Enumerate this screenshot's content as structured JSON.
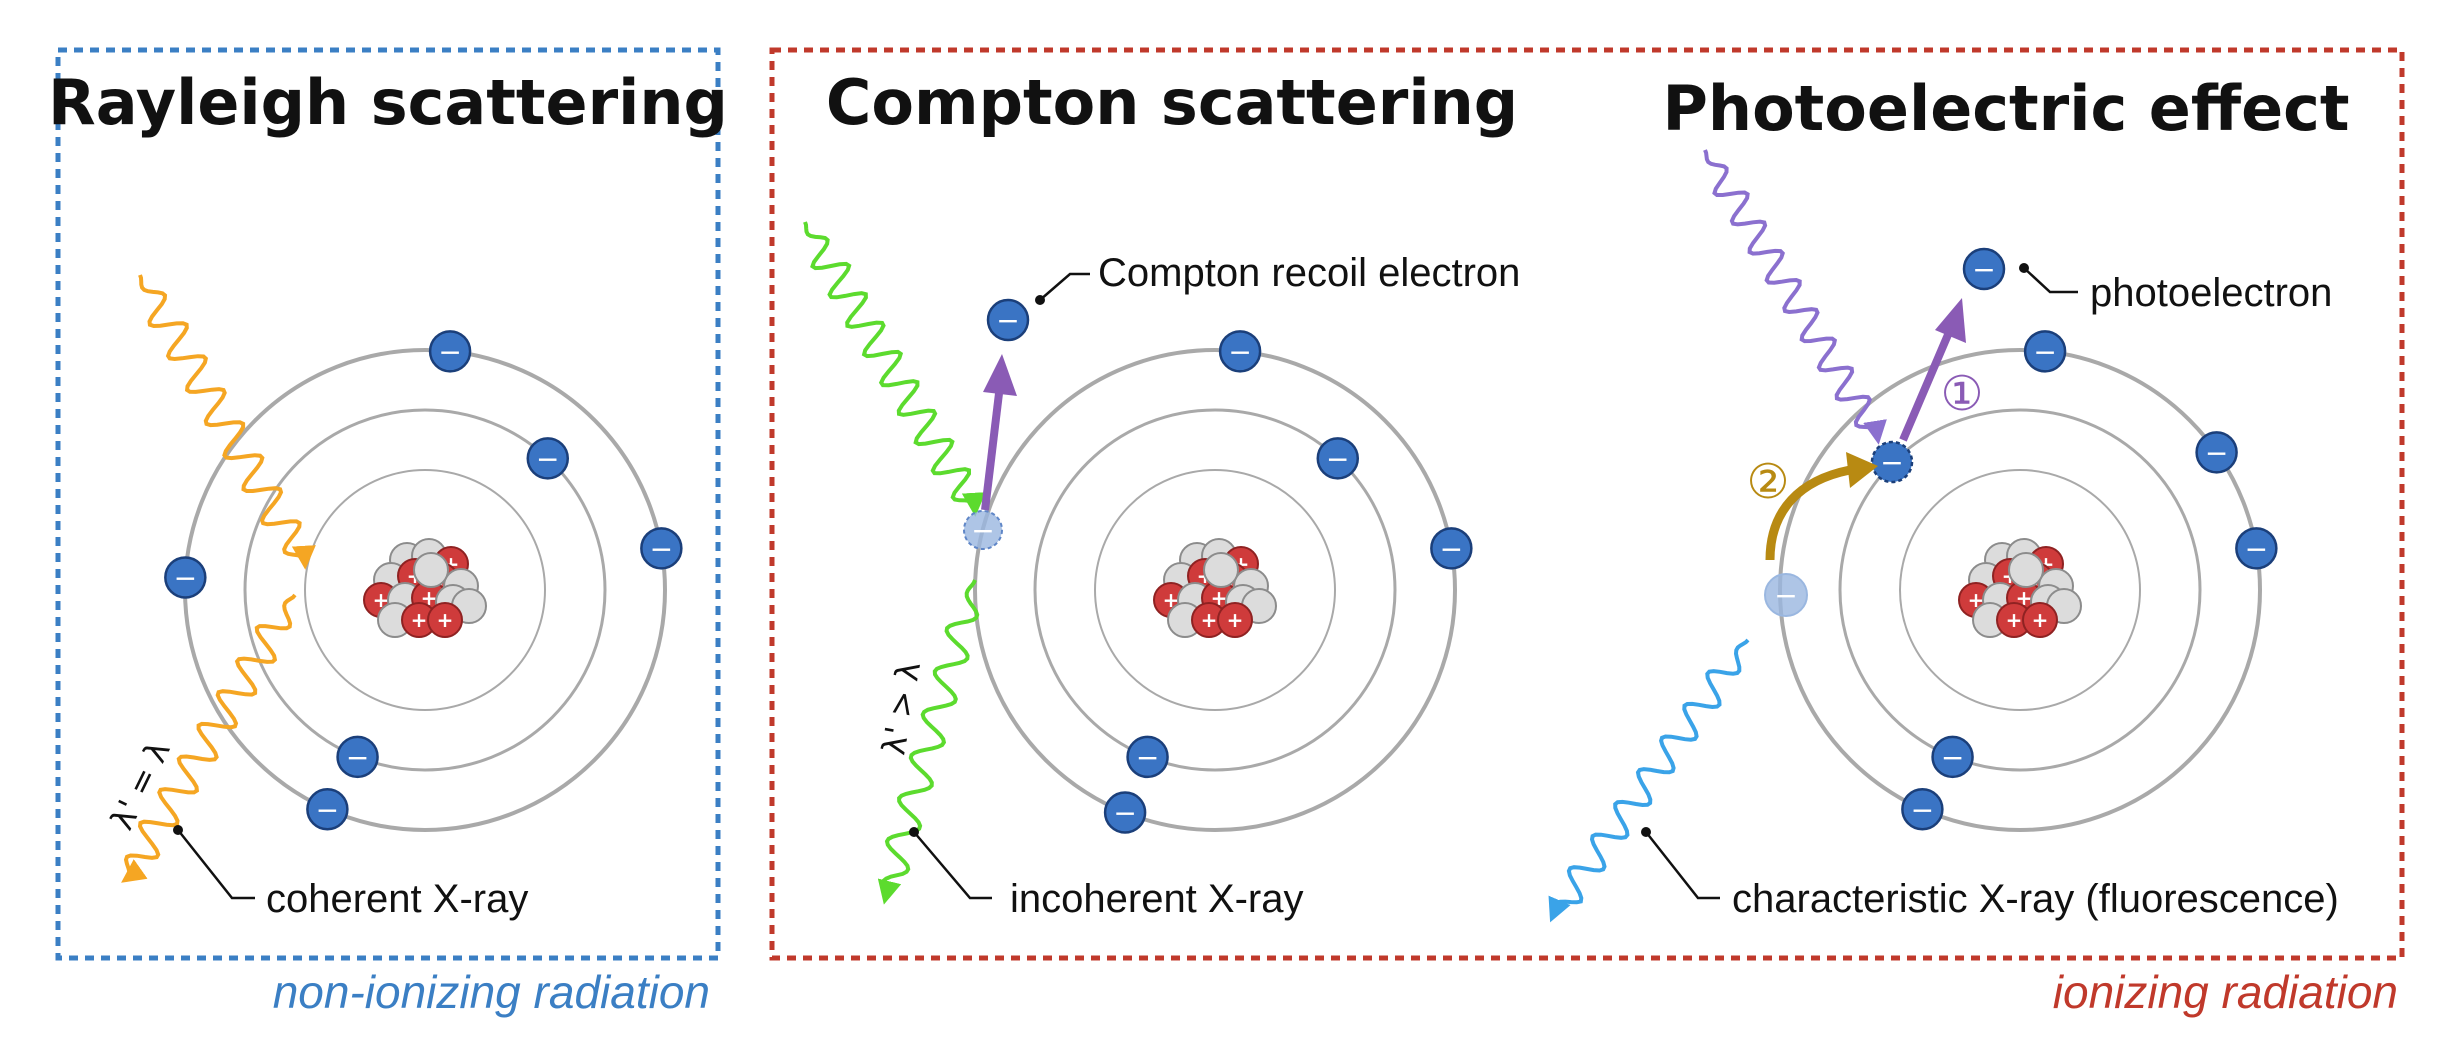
{
  "panels": [
    {
      "title": "Rayleigh scattering",
      "label": "coherent X-ray",
      "relation": "λ' = λ"
    },
    {
      "title": "Compton scattering",
      "label": "incoherent X-ray",
      "recoil_label": "Compton recoil electron",
      "relation": "λ' > λ"
    },
    {
      "title": "Photoelectric effect",
      "label": "characteristic X-ray (fluorescence)",
      "photo_label": "photoelectron",
      "step1": "①",
      "step2": "②"
    }
  ],
  "groups": {
    "non_ionizing": "non-ionizing radiation",
    "ionizing": "ionizing radiation"
  },
  "colors": {
    "blue_frame": "#3b7fc4",
    "red_frame": "#c0392b",
    "electron": "#3a74c4",
    "proton": "#cf3b3b",
    "neutron": "#dcdcdc",
    "orbit": "#a9a9a9",
    "rayleigh_wave": "#f5a623",
    "compton_in": "#5cdb2e",
    "photo_in": "#8b70cf",
    "fluorescence": "#3aa3e8",
    "recoil_arrow": "#8a5bb5",
    "step2_arrow": "#b88a12"
  }
}
